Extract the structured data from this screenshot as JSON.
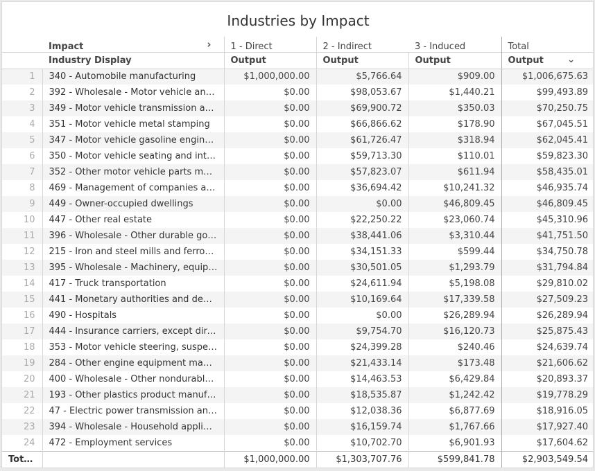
{
  "title": "Industries by Impact",
  "header": {
    "impact_label": "Impact",
    "industry_label": "Industry Display",
    "groups": [
      "1 - Direct",
      "2 - Indirect",
      "3 - Induced",
      "Total"
    ],
    "metric": "Output",
    "expand_icon": "chevron-right-icon",
    "sort_icon": "chevron-down-icon"
  },
  "rows": [
    {
      "n": "1",
      "industry": "340 - Automobile manufacturing",
      "direct": "$1,000,000.00",
      "indirect": "$5,766.64",
      "induced": "$909.00",
      "total": "$1,006,675.63"
    },
    {
      "n": "2",
      "industry": "392 - Wholesale - Motor vehicle and ...",
      "direct": "$0.00",
      "indirect": "$98,053.67",
      "induced": "$1,440.21",
      "total": "$99,493.89"
    },
    {
      "n": "3",
      "industry": "349 - Motor vehicle transmission and ...",
      "direct": "$0.00",
      "indirect": "$69,900.72",
      "induced": "$350.03",
      "total": "$70,250.75"
    },
    {
      "n": "4",
      "industry": "351 - Motor vehicle metal stamping",
      "direct": "$0.00",
      "indirect": "$66,866.62",
      "induced": "$178.90",
      "total": "$67,045.51"
    },
    {
      "n": "5",
      "industry": "347 - Motor vehicle gasoline engine a...",
      "direct": "$0.00",
      "indirect": "$61,726.47",
      "induced": "$318.94",
      "total": "$62,045.41"
    },
    {
      "n": "6",
      "industry": "350 - Motor vehicle seating and interi...",
      "direct": "$0.00",
      "indirect": "$59,713.30",
      "induced": "$110.01",
      "total": "$59,823.30"
    },
    {
      "n": "7",
      "industry": "352 - Other motor vehicle parts manu...",
      "direct": "$0.00",
      "indirect": "$57,823.07",
      "induced": "$611.94",
      "total": "$58,435.01"
    },
    {
      "n": "8",
      "industry": "469 - Management of companies and ...",
      "direct": "$0.00",
      "indirect": "$36,694.42",
      "induced": "$10,241.32",
      "total": "$46,935.74"
    },
    {
      "n": "9",
      "industry": "449 - Owner-occupied dwellings",
      "direct": "$0.00",
      "indirect": "$0.00",
      "induced": "$46,809.45",
      "total": "$46,809.45"
    },
    {
      "n": "10",
      "industry": "447 - Other real estate",
      "direct": "$0.00",
      "indirect": "$22,250.22",
      "induced": "$23,060.74",
      "total": "$45,310.96"
    },
    {
      "n": "11",
      "industry": "396 - Wholesale - Other durable good...",
      "direct": "$0.00",
      "indirect": "$38,441.06",
      "induced": "$3,310.44",
      "total": "$41,751.50"
    },
    {
      "n": "12",
      "industry": "215 - Iron and steel mills and ferroallo...",
      "direct": "$0.00",
      "indirect": "$34,151.33",
      "induced": "$599.44",
      "total": "$34,750.78"
    },
    {
      "n": "13",
      "industry": "395 - Wholesale - Machinery, equipm...",
      "direct": "$0.00",
      "indirect": "$30,501.05",
      "induced": "$1,293.79",
      "total": "$31,794.84"
    },
    {
      "n": "14",
      "industry": "417 - Truck transportation",
      "direct": "$0.00",
      "indirect": "$24,611.94",
      "induced": "$5,198.08",
      "total": "$29,810.02"
    },
    {
      "n": "15",
      "industry": "441 - Monetary authorities and depos...",
      "direct": "$0.00",
      "indirect": "$10,169.64",
      "induced": "$17,339.58",
      "total": "$27,509.23"
    },
    {
      "n": "16",
      "industry": "490 - Hospitals",
      "direct": "$0.00",
      "indirect": "$0.00",
      "induced": "$26,289.94",
      "total": "$26,289.94"
    },
    {
      "n": "17",
      "industry": "444 - Insurance carriers, except direct...",
      "direct": "$0.00",
      "indirect": "$9,754.70",
      "induced": "$16,120.73",
      "total": "$25,875.43"
    },
    {
      "n": "18",
      "industry": "353 - Motor vehicle steering, suspensi...",
      "direct": "$0.00",
      "indirect": "$24,399.28",
      "induced": "$240.46",
      "total": "$24,639.74"
    },
    {
      "n": "19",
      "industry": "284 - Other engine equipment manuf...",
      "direct": "$0.00",
      "indirect": "$21,433.14",
      "induced": "$173.48",
      "total": "$21,606.62"
    },
    {
      "n": "20",
      "industry": "400 - Wholesale - Other nondurable g...",
      "direct": "$0.00",
      "indirect": "$14,463.53",
      "induced": "$6,429.84",
      "total": "$20,893.37"
    },
    {
      "n": "21",
      "industry": "193 - Other plastics product manufact...",
      "direct": "$0.00",
      "indirect": "$18,535.87",
      "induced": "$1,242.42",
      "total": "$19,778.29"
    },
    {
      "n": "22",
      "industry": "47 - Electric power transmission and ...",
      "direct": "$0.00",
      "indirect": "$12,038.36",
      "induced": "$6,877.69",
      "total": "$18,916.05"
    },
    {
      "n": "23",
      "industry": "394 - Wholesale - Household applianc...",
      "direct": "$0.00",
      "indirect": "$16,159.74",
      "induced": "$1,767.66",
      "total": "$17,927.40"
    },
    {
      "n": "24",
      "industry": "472 - Employment services",
      "direct": "$0.00",
      "indirect": "$10,702.70",
      "induced": "$6,901.93",
      "total": "$17,604.62"
    }
  ],
  "totals": {
    "label": "Totals",
    "direct": "$1,000,000.00",
    "indirect": "$1,303,707.76",
    "induced": "$599,841.78",
    "total": "$2,903,549.54"
  }
}
